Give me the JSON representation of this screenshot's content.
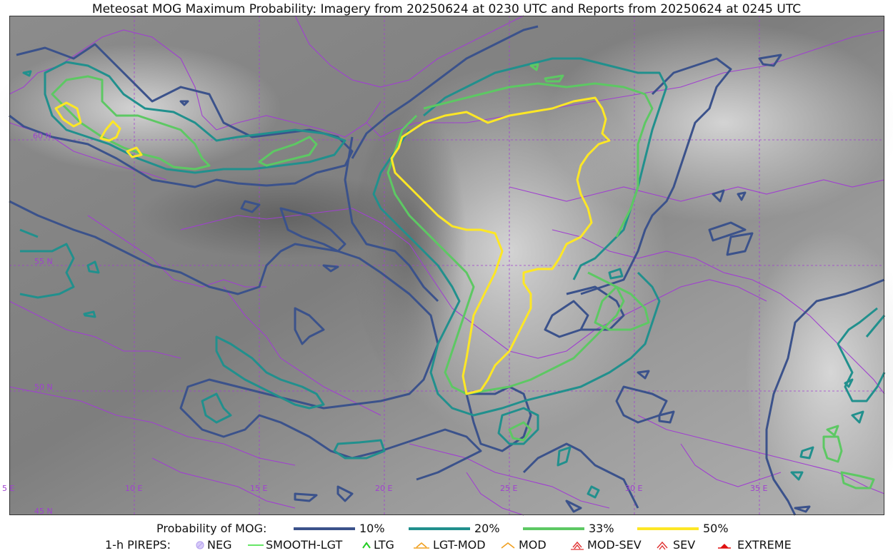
{
  "title": "Meteosat MOG Maximum Probability: Imagery from 20250624 at 0230 UTC and Reports from 20250624 at 0245 UTC",
  "map": {
    "lat_labels": [
      "60 N",
      "55 N",
      "50 N",
      "45 N"
    ],
    "lon_labels": [
      "5 E",
      "10 E",
      "15 E",
      "20 E",
      "25 E",
      "30 E",
      "35 E"
    ],
    "border_color": "#a040d0"
  },
  "legend": {
    "prob_title": "Probability of MOG:",
    "levels": [
      {
        "label": "10%",
        "color": "#3b528b"
      },
      {
        "label": "20%",
        "color": "#21908d"
      },
      {
        "label": "33%",
        "color": "#5dc863"
      },
      {
        "label": "50%",
        "color": "#fde725"
      }
    ],
    "pirep_title": "1-h PIREPS:",
    "pireps": [
      {
        "label": "NEG",
        "icon": "neg-icon",
        "color": "#b9a6f0"
      },
      {
        "label": "SMOOTH-LGT",
        "icon": "line-icon",
        "color": "#33dd33"
      },
      {
        "label": "LTG",
        "icon": "chevron-icon",
        "color": "#22cc22"
      },
      {
        "label": "LGT-MOD",
        "icon": "chevron-bar-icon",
        "color": "#f0a020"
      },
      {
        "label": "MOD",
        "icon": "chevron-icon",
        "color": "#f0a020"
      },
      {
        "label": "MOD-SEV",
        "icon": "double-chevron-bar-icon",
        "color": "#e03030"
      },
      {
        "label": "SEV",
        "icon": "double-chevron-icon",
        "color": "#e03030"
      },
      {
        "label": "EXTREME",
        "icon": "filled-triangle-icon",
        "color": "#e01010"
      }
    ]
  }
}
